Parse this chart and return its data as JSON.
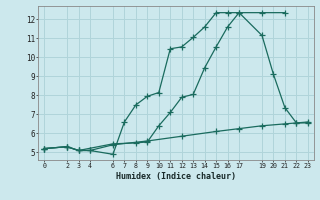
{
  "background_color": "#cce8ed",
  "grid_color": "#b0d4da",
  "line_color": "#1a6b5e",
  "xlabel": "Humidex (Indice chaleur)",
  "xlim": [
    -0.5,
    23.5
  ],
  "ylim": [
    4.6,
    12.7
  ],
  "yticks": [
    5,
    6,
    7,
    8,
    9,
    10,
    11,
    12
  ],
  "xticks": [
    0,
    2,
    3,
    4,
    6,
    7,
    8,
    9,
    10,
    11,
    12,
    13,
    14,
    15,
    16,
    17,
    19,
    20,
    21,
    22,
    23
  ],
  "line1_x": [
    0,
    2,
    3,
    4,
    6,
    7,
    8,
    9,
    10,
    11,
    12,
    13,
    14,
    15,
    16,
    17,
    19,
    21
  ],
  "line1_y": [
    5.2,
    5.3,
    5.1,
    5.1,
    4.9,
    6.6,
    7.5,
    7.95,
    8.15,
    10.45,
    10.55,
    11.05,
    11.6,
    12.35,
    12.35,
    12.35,
    12.35,
    12.35
  ],
  "line2_x": [
    0,
    2,
    3,
    6,
    8,
    9,
    10,
    11,
    12,
    13,
    14,
    15,
    16,
    17,
    19,
    20,
    21,
    22,
    23
  ],
  "line2_y": [
    5.2,
    5.3,
    5.1,
    5.45,
    5.5,
    5.55,
    6.4,
    7.1,
    7.9,
    8.05,
    9.45,
    10.55,
    11.6,
    12.35,
    11.15,
    9.1,
    7.35,
    6.55,
    6.55
  ],
  "line3_x": [
    0,
    2,
    3,
    4,
    6,
    9,
    12,
    15,
    17,
    19,
    21,
    22,
    23
  ],
  "line3_y": [
    5.2,
    5.3,
    5.1,
    5.1,
    5.4,
    5.6,
    5.85,
    6.1,
    6.25,
    6.4,
    6.5,
    6.55,
    6.6
  ]
}
